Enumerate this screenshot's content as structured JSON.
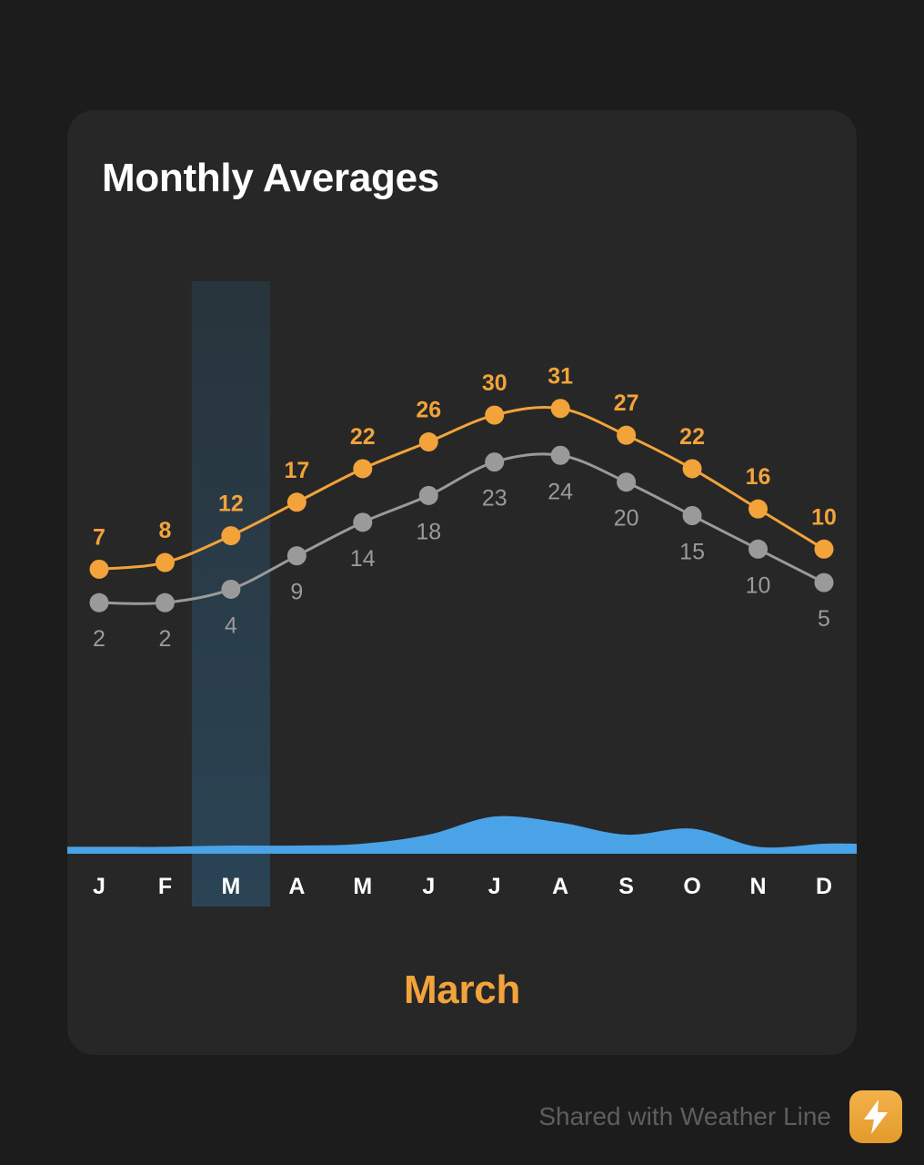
{
  "card": {
    "title": "Monthly Averages",
    "selected_month_label": "March",
    "selected_index": 2
  },
  "footer": {
    "text": "Shared with Weather Line",
    "badge_icon": "lightning-bolt-icon"
  },
  "colors": {
    "high": "#f2a33a",
    "low": "#9a9a9a",
    "precip": "#4aa3e6",
    "highlight": "#2a4455",
    "selected_text": "#f2a33a"
  },
  "chart_data": {
    "type": "line",
    "categories": [
      "J",
      "F",
      "M",
      "A",
      "M",
      "J",
      "J",
      "A",
      "S",
      "O",
      "N",
      "D"
    ],
    "series": [
      {
        "values": [
          7,
          8,
          12,
          17,
          22,
          26,
          30,
          31,
          27,
          22,
          16,
          10
        ]
      },
      {
        "values": [
          2,
          2,
          4,
          9,
          14,
          18,
          23,
          24,
          20,
          15,
          10,
          5
        ]
      }
    ],
    "area": {
      "values": [
        0.1,
        0.1,
        0.12,
        0.12,
        0.15,
        0.3,
        0.6,
        0.5,
        0.3,
        0.4,
        0.1,
        0.15
      ]
    }
  }
}
